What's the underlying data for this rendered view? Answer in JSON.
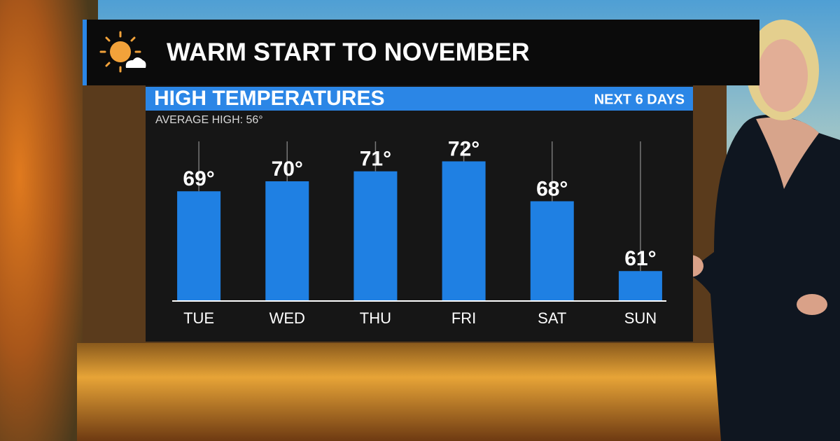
{
  "chart_data": {
    "type": "bar",
    "title": "WARM START TO NOVEMBER",
    "subtitle": "HIGH TEMPERATURES",
    "annotations": [
      "NEXT 6 DAYS",
      "AVERAGE HIGH:  56°"
    ],
    "categories": [
      "TUE",
      "WED",
      "THU",
      "FRI",
      "SAT",
      "SUN"
    ],
    "values": [
      69,
      70,
      71,
      72,
      68,
      61
    ],
    "value_labels": [
      "69°",
      "70°",
      "71°",
      "72°",
      "68°",
      "61°"
    ],
    "color": "#1f80e3",
    "ylim": [
      58,
      74
    ]
  }
}
